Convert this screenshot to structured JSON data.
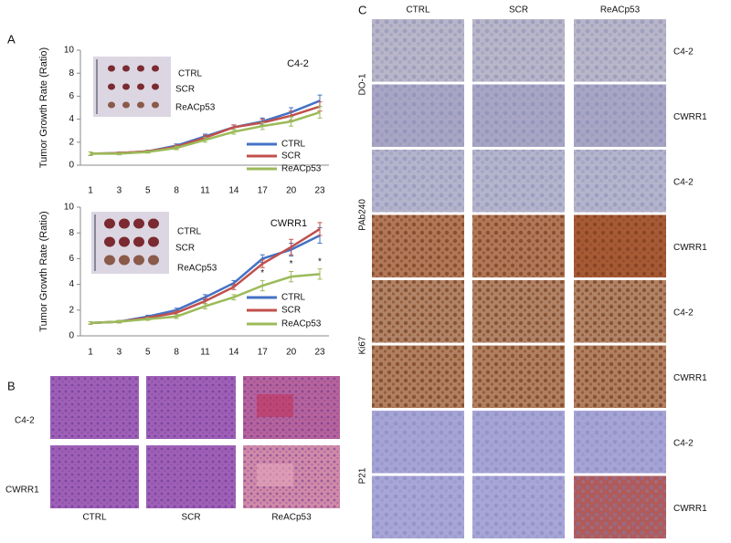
{
  "chart_data": [
    {
      "type": "line",
      "title": "C4-2",
      "y_label": "Tumor Growth Rate (Ratio)",
      "categories": [
        "1",
        "3",
        "5",
        "8",
        "11",
        "14",
        "17",
        "20",
        "23"
      ],
      "ylim": [
        0,
        10
      ],
      "yticks": [
        0,
        2,
        4,
        6,
        8,
        10
      ],
      "inset_labels": [
        "CTRL",
        "SCR",
        "ReACp53"
      ],
      "series": [
        {
          "name": "CTRL",
          "color": "#4472c4",
          "values": [
            1.0,
            1.05,
            1.2,
            1.7,
            2.5,
            3.3,
            3.8,
            4.6,
            5.6
          ],
          "errors": [
            0.15,
            0.1,
            0.1,
            0.15,
            0.2,
            0.2,
            0.3,
            0.4,
            0.5
          ]
        },
        {
          "name": "SCR",
          "color": "#c0504d",
          "values": [
            1.0,
            1.05,
            1.2,
            1.6,
            2.4,
            3.3,
            3.7,
            4.3,
            5.1
          ],
          "errors": [
            0.15,
            0.1,
            0.1,
            0.15,
            0.2,
            0.2,
            0.3,
            0.4,
            0.4
          ]
        },
        {
          "name": "ReACp53",
          "color": "#9bbb59",
          "values": [
            1.0,
            1.0,
            1.15,
            1.5,
            2.2,
            2.9,
            3.4,
            3.8,
            4.6
          ],
          "errors": [
            0.15,
            0.1,
            0.1,
            0.15,
            0.2,
            0.2,
            0.3,
            0.4,
            0.5
          ]
        }
      ]
    },
    {
      "type": "line",
      "title": "CWRR1",
      "y_label": "Tumor Growth Rate (Ratio)",
      "categories": [
        "1",
        "3",
        "5",
        "8",
        "11",
        "14",
        "17",
        "20",
        "23"
      ],
      "ylim": [
        0,
        10
      ],
      "yticks": [
        0,
        2,
        4,
        6,
        8,
        10
      ],
      "inset_labels": [
        "CTRL",
        "SCR",
        "ReACp53"
      ],
      "annotations": [
        "*",
        "*",
        "*"
      ],
      "series": [
        {
          "name": "CTRL",
          "color": "#4472c4",
          "values": [
            1.0,
            1.1,
            1.5,
            2.0,
            3.0,
            4.1,
            6.0,
            6.7,
            7.8
          ],
          "errors": [
            0.1,
            0.1,
            0.1,
            0.15,
            0.2,
            0.2,
            0.3,
            0.5,
            0.6
          ]
        },
        {
          "name": "SCR",
          "color": "#c0504d",
          "values": [
            1.0,
            1.1,
            1.4,
            1.8,
            2.7,
            3.8,
            5.6,
            6.9,
            8.3
          ],
          "errors": [
            0.1,
            0.1,
            0.1,
            0.15,
            0.2,
            0.2,
            0.3,
            0.6,
            0.5
          ]
        },
        {
          "name": "ReACp53",
          "color": "#9bbb59",
          "values": [
            1.0,
            1.1,
            1.3,
            1.5,
            2.3,
            3.0,
            3.9,
            4.6,
            4.8
          ],
          "errors": [
            0.1,
            0.1,
            0.1,
            0.15,
            0.2,
            0.2,
            0.4,
            0.4,
            0.4
          ]
        }
      ]
    }
  ],
  "panels": {
    "A": {
      "label": "A"
    },
    "B": {
      "label": "B",
      "rows": [
        "C4-2",
        "CWRR1"
      ],
      "columns": [
        "CTRL",
        "SCR",
        "ReACp53"
      ]
    },
    "C": {
      "label": "C",
      "columns": [
        "CTRL",
        "SCR",
        "ReACp53"
      ],
      "groups": [
        "DO-1",
        "PAb240",
        "Ki67",
        "P21"
      ],
      "rows": [
        "C4-2",
        "CWRR1",
        "C4-2",
        "CWRR1",
        "C4-2",
        "CWRR1",
        "C4-2",
        "CWRR1"
      ]
    }
  }
}
